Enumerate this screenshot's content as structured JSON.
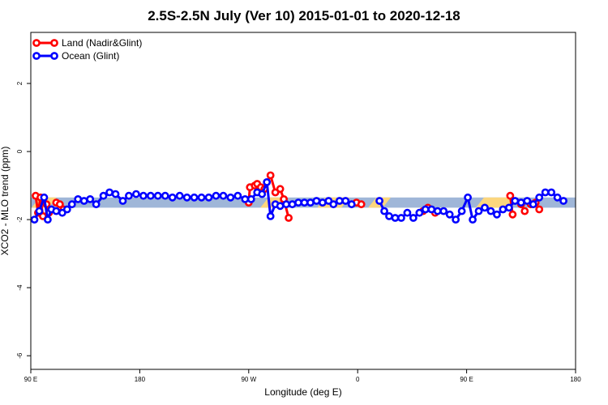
{
  "chart_data": {
    "type": "line",
    "title": "2.5S-2.5N July (Ver 10)   2015-01-01 to 2020-12-18",
    "xlabel": "Longitude (deg E)",
    "ylabel": "XCO2 - MLO trend (ppm)",
    "x_ticks": [
      {
        "value": 90,
        "label": "90 E"
      },
      {
        "value": 180,
        "label": "180"
      },
      {
        "value": 270,
        "label": "90 W"
      },
      {
        "value": 360,
        "label": "0"
      },
      {
        "value": 450,
        "label": "90 E"
      },
      {
        "value": 540,
        "label": "180"
      }
    ],
    "y_ticks": [
      {
        "value": 2,
        "label": "2"
      },
      {
        "value": 0,
        "label": "0"
      },
      {
        "value": -2,
        "label": "-2"
      },
      {
        "value": -4,
        "label": "-4"
      },
      {
        "value": -6,
        "label": "-6"
      }
    ],
    "xlim": [
      90,
      540
    ],
    "ylim": [
      -6.4,
      3.5
    ],
    "grid": false,
    "legend_position": "top-left",
    "background_band": {
      "y_low": -1.65,
      "y_high": -1.35,
      "ocean_color": "#9fb6d8",
      "land_color": "#fcd67e",
      "land_ranges": [
        [
          94,
          108
        ],
        [
          283,
          298
        ],
        [
          330,
          350
        ],
        [
          372,
          384
        ],
        [
          461,
          487
        ]
      ]
    },
    "series": [
      {
        "name": "Land (Nadir&Glint)",
        "color": "#ff0000",
        "segments": [
          [
            [
              94,
              -1.3
            ],
            [
              96,
              -1.8
            ],
            [
              98,
              -1.35
            ],
            [
              100,
              -1.9
            ]
          ],
          [
            [
              103,
              -1.55
            ],
            [
              105,
              -1.8
            ]
          ],
          [
            [
              111,
              -1.5
            ],
            [
              114,
              -1.55
            ],
            [
              117,
              -1.7
            ]
          ],
          [
            [
              270,
              -1.5
            ],
            [
              271,
              -1.05
            ],
            [
              275,
              -1.0
            ],
            [
              277,
              -0.95
            ],
            [
              280,
              -1.05
            ],
            [
              283,
              -1.1
            ],
            [
              288,
              -0.7
            ],
            [
              292,
              -1.2
            ],
            [
              296,
              -1.1
            ],
            [
              299,
              -1.4
            ],
            [
              303,
              -1.95
            ]
          ],
          [
            [
              359,
              -1.5
            ],
            [
              363,
              -1.55
            ]
          ],
          [
            [
              414,
              -1.75
            ],
            [
              418,
              -1.65
            ],
            [
              424,
              -1.8
            ]
          ],
          [
            [
              486,
              -1.3
            ],
            [
              488,
              -1.85
            ]
          ],
          [
            [
              495,
              -1.55
            ],
            [
              498,
              -1.75
            ]
          ],
          [
            [
              503,
              -1.55
            ],
            [
              507,
              -1.5
            ],
            [
              510,
              -1.7
            ]
          ]
        ]
      },
      {
        "name": "Ocean (Glint)",
        "color": "#0000ff",
        "segments": [
          [
            [
              93,
              -2.0
            ],
            [
              97,
              -1.75
            ],
            [
              101,
              -1.35
            ],
            [
              104,
              -2.0
            ],
            [
              107,
              -1.7
            ],
            [
              111,
              -1.75
            ],
            [
              116,
              -1.8
            ],
            [
              120,
              -1.7
            ],
            [
              124,
              -1.55
            ],
            [
              129,
              -1.4
            ],
            [
              134,
              -1.45
            ],
            [
              139,
              -1.4
            ],
            [
              144,
              -1.55
            ],
            [
              150,
              -1.3
            ],
            [
              155,
              -1.2
            ],
            [
              160,
              -1.25
            ],
            [
              166,
              -1.45
            ],
            [
              171,
              -1.3
            ],
            [
              177,
              -1.25
            ],
            [
              183,
              -1.3
            ],
            [
              189,
              -1.3
            ],
            [
              195,
              -1.3
            ],
            [
              201,
              -1.3
            ],
            [
              207,
              -1.35
            ],
            [
              213,
              -1.3
            ],
            [
              219,
              -1.35
            ],
            [
              225,
              -1.35
            ],
            [
              231,
              -1.35
            ],
            [
              237,
              -1.35
            ],
            [
              243,
              -1.3
            ],
            [
              249,
              -1.3
            ],
            [
              255,
              -1.35
            ],
            [
              261,
              -1.3
            ],
            [
              267,
              -1.4
            ],
            [
              272,
              -1.4
            ],
            [
              277,
              -1.2
            ],
            [
              281,
              -1.25
            ],
            [
              285,
              -0.9
            ],
            [
              288,
              -1.9
            ],
            [
              292,
              -1.55
            ],
            [
              296,
              -1.6
            ],
            [
              301,
              -1.55
            ],
            [
              306,
              -1.55
            ],
            [
              311,
              -1.5
            ],
            [
              316,
              -1.5
            ],
            [
              321,
              -1.5
            ],
            [
              326,
              -1.45
            ],
            [
              331,
              -1.5
            ],
            [
              336,
              -1.45
            ],
            [
              340,
              -1.55
            ],
            [
              345,
              -1.45
            ],
            [
              350,
              -1.45
            ],
            [
              355,
              -1.55
            ]
          ],
          [
            [
              378,
              -1.45
            ],
            [
              382,
              -1.75
            ],
            [
              386,
              -1.9
            ],
            [
              391,
              -1.95
            ],
            [
              396,
              -1.95
            ],
            [
              401,
              -1.8
            ],
            [
              406,
              -1.95
            ],
            [
              411,
              -1.8
            ],
            [
              416,
              -1.7
            ],
            [
              421,
              -1.7
            ],
            [
              426,
              -1.75
            ],
            [
              431,
              -1.75
            ],
            [
              436,
              -1.85
            ],
            [
              441,
              -2.0
            ],
            [
              446,
              -1.75
            ],
            [
              451,
              -1.35
            ],
            [
              455,
              -2.0
            ],
            [
              460,
              -1.75
            ],
            [
              465,
              -1.65
            ],
            [
              470,
              -1.75
            ],
            [
              475,
              -1.85
            ],
            [
              480,
              -1.7
            ],
            [
              485,
              -1.65
            ],
            [
              490,
              -1.45
            ],
            [
              495,
              -1.5
            ],
            [
              500,
              -1.45
            ],
            [
              505,
              -1.55
            ],
            [
              510,
              -1.35
            ],
            [
              515,
              -1.2
            ],
            [
              520,
              -1.2
            ],
            [
              525,
              -1.35
            ],
            [
              530,
              -1.45
            ]
          ]
        ]
      }
    ]
  }
}
